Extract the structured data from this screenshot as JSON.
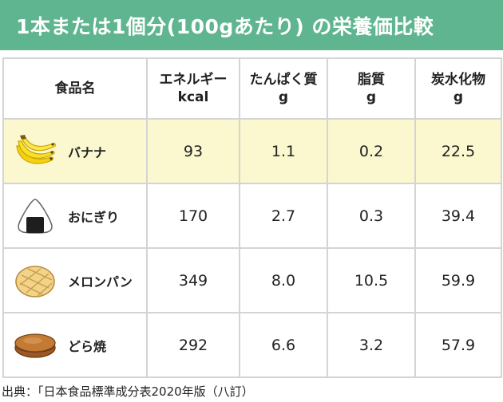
{
  "title": "1本または1個分(100gあたり) の栄養価比較",
  "headers": {
    "food": "食品名",
    "energy": "エネルギー",
    "energy_unit": "kcal",
    "protein": "たんぱく質",
    "protein_unit": "g",
    "fat": "脂質",
    "fat_unit": "g",
    "carb": "炭水化物",
    "carb_unit": "g"
  },
  "rows": [
    {
      "name": "バナナ",
      "icon": "banana-icon",
      "energy": "93",
      "protein": "1.1",
      "fat": "0.2",
      "carb": "22.5"
    },
    {
      "name": "おにぎり",
      "icon": "onigiri-icon",
      "energy": "170",
      "protein": "2.7",
      "fat": "0.3",
      "carb": "39.4"
    },
    {
      "name": "メロンパン",
      "icon": "melon-pan-icon",
      "energy": "349",
      "protein": "8.0",
      "fat": "10.5",
      "carb": "59.9"
    },
    {
      "name": "どら焼",
      "icon": "dorayaki-icon",
      "energy": "292",
      "protein": "6.6",
      "fat": "3.2",
      "carb": "57.9"
    }
  ],
  "source": "出典：「日本食品標準成分表2020年版（八訂）",
  "colors": {
    "title_bg": "#5fb590",
    "highlight_row": "#fbf8cf",
    "border": "#d4d4d4"
  }
}
